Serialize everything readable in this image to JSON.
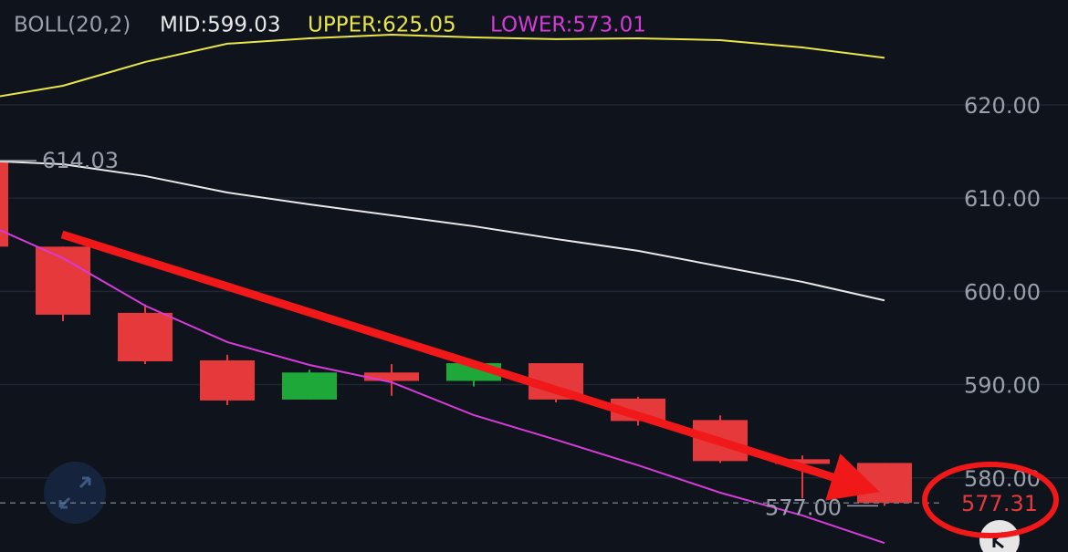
{
  "chart_data": {
    "type": "candlestick",
    "title": "BOLL(20,2)",
    "open": [
      614.03,
      604.8,
      597.7,
      592.6,
      588.4,
      591.3,
      590.4,
      592.3,
      588.5,
      586.2,
      582.0,
      581.6
    ],
    "high": [
      614.03,
      604.8,
      598.6,
      593.2,
      591.6,
      592.2,
      592.3,
      592.3,
      588.7,
      586.7,
      582.4,
      581.6
    ],
    "low": [
      604.8,
      596.8,
      592.2,
      587.8,
      588.4,
      588.8,
      589.8,
      588.1,
      585.6,
      581.6,
      577.8,
      577.0
    ],
    "close": [
      604.8,
      597.5,
      592.5,
      588.3,
      591.3,
      590.4,
      592.3,
      588.4,
      586.1,
      581.8,
      581.5,
      577.31
    ],
    "up_color": "#1fa83a",
    "down_color": "#e5393b",
    "series": [
      {
        "name": "MID:599.03",
        "color": "#e8e8e8",
        "values": [
          614.03,
          613.64,
          612.37,
          610.6,
          609.33,
          608.16,
          606.99,
          605.62,
          604.35,
          602.68,
          601.02,
          599.03
        ]
      },
      {
        "name": "UPPER:625.05",
        "color": "#e9e64a",
        "values": [
          620.59,
          622.05,
          624.6,
          626.56,
          627.14,
          627.53,
          627.24,
          627.05,
          627.14,
          626.95,
          626.16,
          625.05
        ]
      },
      {
        "name": "LOWER:573.01",
        "color": "#d53bd8",
        "values": [
          607.48,
          603.56,
          598.47,
          594.56,
          592.11,
          590.25,
          586.73,
          584.09,
          581.35,
          578.41,
          575.97,
          573.01
        ]
      }
    ],
    "ylim": [
      572.05,
      631.25
    ],
    "yticks": [
      {
        "value": 580,
        "label": "580.00"
      },
      {
        "value": 590,
        "label": "590.00"
      },
      {
        "value": 600,
        "label": "600.00"
      },
      {
        "value": 610,
        "label": "610.00"
      },
      {
        "value": 620,
        "label": "620.00"
      }
    ],
    "grid": true,
    "max_marker": 614.03,
    "min_marker": {
      "value": 577,
      "label": "577.00"
    },
    "last_price": 577.31
  }
}
